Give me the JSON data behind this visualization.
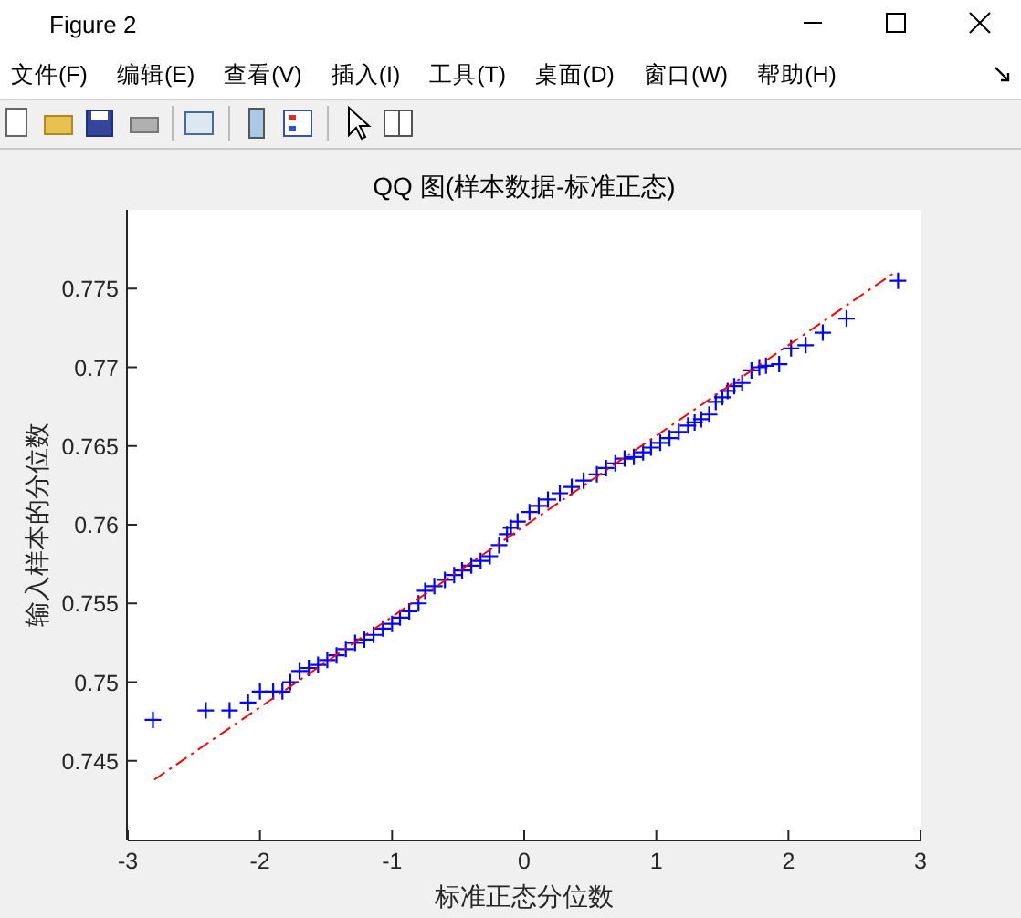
{
  "chart_data": {
    "type": "scatter",
    "title": "QQ 图(样本数据-标准正态)",
    "xlabel": "标准正态分位数",
    "ylabel": "输入样本的分位数",
    "annotations": [
      "Figure 2",
      "文件(F)",
      "编辑(E)",
      "查看(V)",
      "插入(I)",
      "工具(T)",
      "桌面(D)",
      "窗口(W)",
      "帮助(H)"
    ],
    "xlim": [
      -3,
      3
    ],
    "ylim": [
      0.74,
      0.78
    ],
    "xticks": [
      -3,
      -2,
      -1,
      0,
      1,
      2,
      3
    ],
    "yticks": [
      0.745,
      0.75,
      0.755,
      0.76,
      0.765,
      0.77,
      0.775
    ],
    "marker": "cross",
    "series": [
      {
        "color": "#0000ff",
        "x": [
          -2.81,
          -2.41,
          -2.23,
          -2.09,
          -2.0,
          -1.9,
          -1.83,
          -1.77,
          -1.7,
          -1.63,
          -1.56,
          -1.49,
          -1.42,
          -1.35,
          -1.28,
          -1.21,
          -1.14,
          -1.07,
          -1.0,
          -0.94,
          -0.87,
          -0.8,
          -0.75,
          -0.68,
          -0.6,
          -0.53,
          -0.47,
          -0.4,
          -0.33,
          -0.26,
          -0.19,
          -0.13,
          -0.1,
          -0.05,
          0.04,
          0.11,
          0.18,
          0.27,
          0.36,
          0.45,
          0.55,
          0.62,
          0.69,
          0.76,
          0.83,
          0.9,
          0.96,
          1.03,
          1.1,
          1.17,
          1.24,
          1.29,
          1.34,
          1.4,
          1.45,
          1.5,
          1.54,
          1.59,
          1.65,
          1.72,
          1.78,
          1.83,
          1.93,
          2.02,
          2.13,
          2.26,
          2.44,
          2.83
        ],
        "values": [
          0.7476,
          0.7482,
          0.7482,
          0.7487,
          0.7494,
          0.7494,
          0.7494,
          0.75,
          0.7507,
          0.7509,
          0.7511,
          0.7514,
          0.7517,
          0.7521,
          0.7525,
          0.7527,
          0.753,
          0.7534,
          0.7537,
          0.7541,
          0.7545,
          0.755,
          0.7558,
          0.7561,
          0.7565,
          0.7568,
          0.7571,
          0.7574,
          0.7577,
          0.758,
          0.7587,
          0.7594,
          0.7598,
          0.7602,
          0.7608,
          0.7612,
          0.7616,
          0.762,
          0.7624,
          0.7628,
          0.7632,
          0.7636,
          0.7639,
          0.7642,
          0.7643,
          0.7646,
          0.7649,
          0.7652,
          0.7655,
          0.7659,
          0.7663,
          0.7665,
          0.7667,
          0.767,
          0.7678,
          0.7681,
          0.7685,
          0.7688,
          0.769,
          0.7698,
          0.77,
          0.7701,
          0.7702,
          0.7712,
          0.7714,
          0.7722,
          0.7731,
          0.7755
        ]
      },
      {
        "type": "line",
        "color": "#ff0000",
        "line_style": "dashdot",
        "marker": "none",
        "x": [
          -2.8,
          2.8
        ],
        "values": [
          0.7438,
          0.776
        ]
      }
    ]
  }
}
